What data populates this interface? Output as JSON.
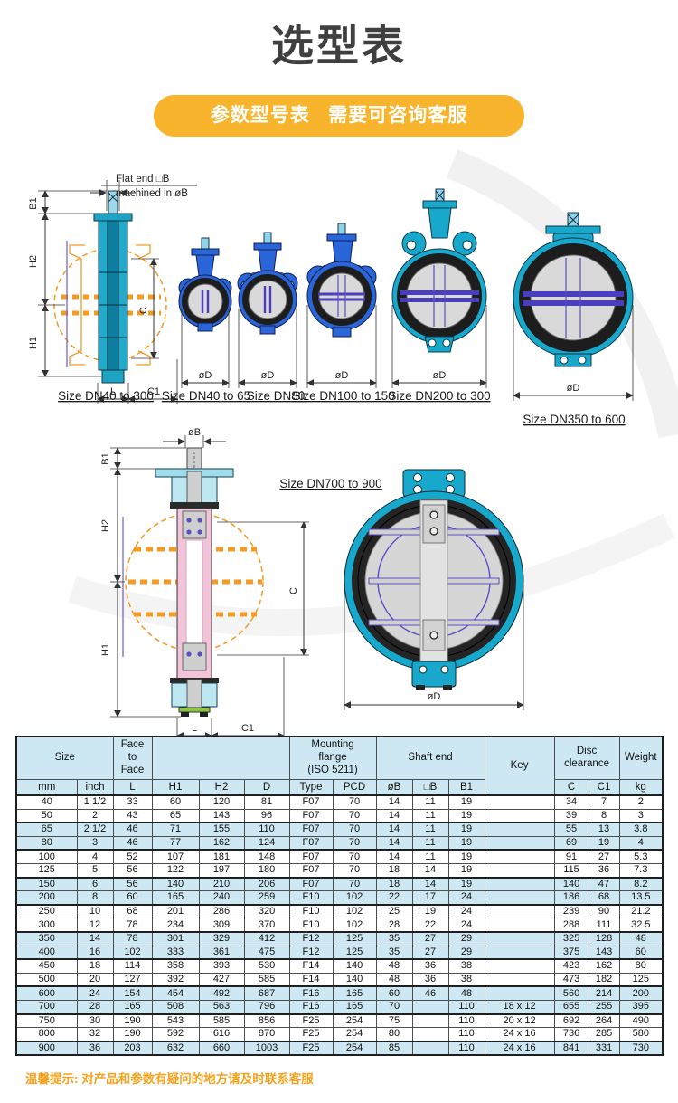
{
  "page": {
    "title": "选型表",
    "banner": "参数型号表   需要可咨询客服",
    "footer_note": "温馨提示: 对产品和参数有疑问的地方请及时联系客服"
  },
  "diagrams": {
    "notes": {
      "flat_end_1": "Flat end □B",
      "flat_end_2": "machined in øB"
    },
    "dims": {
      "b1": "B1",
      "h1": "H1",
      "h2": "H2",
      "c": "C",
      "l": "L",
      "c1": "C1",
      "od": "øD",
      "ob": "øB"
    },
    "captions": [
      "Size DN40 to 300",
      "Size DN40 to 65",
      "Size DN80",
      "Size DN100 to 150",
      "Size DN200 to 300",
      "Size DN350 to 600",
      "Size DN700 to 900"
    ]
  },
  "table": {
    "groups": [
      {
        "label": "Size",
        "colspan": 2
      },
      {
        "label": "Face\nto\nFace",
        "colspan": 1
      },
      {
        "label": "",
        "colspan": 3
      },
      {
        "label": "Mounting\nflange\n(ISO 5211)",
        "colspan": 2
      },
      {
        "label": "Shaft end",
        "colspan": 3
      },
      {
        "label": "Key",
        "colspan": 1,
        "rowspan": 2
      },
      {
        "label": "Disc\nclearance",
        "colspan": 2
      },
      {
        "label": "Weight",
        "colspan": 1
      }
    ],
    "subheaders": [
      "mm",
      "inch",
      "L",
      "H1",
      "H2",
      "D",
      "Type",
      "PCD",
      "øB",
      "□B",
      "B1",
      "C",
      "C1",
      "kg"
    ],
    "rows": [
      [
        "40",
        "1 1/2",
        "33",
        "60",
        "120",
        "81",
        "F07",
        "70",
        "14",
        "11",
        "19",
        "",
        "34",
        "7",
        "2"
      ],
      [
        "50",
        "2",
        "43",
        "65",
        "143",
        "96",
        "F07",
        "70",
        "14",
        "11",
        "19",
        "",
        "39",
        "8",
        "3"
      ],
      [
        "65",
        "2 1/2",
        "46",
        "71",
        "155",
        "110",
        "F07",
        "70",
        "14",
        "11",
        "19",
        "",
        "55",
        "13",
        "3.8"
      ],
      [
        "80",
        "3",
        "46",
        "77",
        "162",
        "124",
        "F07",
        "70",
        "14",
        "11",
        "19",
        "",
        "69",
        "19",
        "4"
      ],
      [
        "100",
        "4",
        "52",
        "107",
        "181",
        "148",
        "F07",
        "70",
        "14",
        "11",
        "19",
        "",
        "91",
        "27",
        "5.3"
      ],
      [
        "125",
        "5",
        "56",
        "122",
        "197",
        "180",
        "F07",
        "70",
        "18",
        "14",
        "19",
        "",
        "115",
        "36",
        "7.3"
      ],
      [
        "150",
        "6",
        "56",
        "140",
        "210",
        "206",
        "F07",
        "70",
        "18",
        "14",
        "19",
        "",
        "140",
        "47",
        "8.2"
      ],
      [
        "200",
        "8",
        "60",
        "165",
        "240",
        "259",
        "F10",
        "102",
        "22",
        "17",
        "24",
        "",
        "186",
        "68",
        "13.5"
      ],
      [
        "250",
        "10",
        "68",
        "201",
        "286",
        "320",
        "F10",
        "102",
        "25",
        "19",
        "24",
        "",
        "239",
        "90",
        "21.2"
      ],
      [
        "300",
        "12",
        "78",
        "234",
        "309",
        "370",
        "F10",
        "102",
        "28",
        "22",
        "24",
        "",
        "288",
        "111",
        "32.5"
      ],
      [
        "350",
        "14",
        "78",
        "301",
        "329",
        "412",
        "F12",
        "125",
        "35",
        "27",
        "29",
        "",
        "325",
        "128",
        "48"
      ],
      [
        "400",
        "16",
        "102",
        "333",
        "361",
        "475",
        "F12",
        "125",
        "35",
        "27",
        "29",
        "",
        "375",
        "143",
        "60"
      ],
      [
        "450",
        "18",
        "114",
        "358",
        "393",
        "530",
        "F14",
        "140",
        "48",
        "36",
        "38",
        "",
        "423",
        "162",
        "80"
      ],
      [
        "500",
        "20",
        "127",
        "392",
        "427",
        "585",
        "F14",
        "140",
        "48",
        "36",
        "38",
        "",
        "473",
        "182",
        "125"
      ],
      [
        "600",
        "24",
        "154",
        "454",
        "492",
        "687",
        "F16",
        "165",
        "60",
        "46",
        "48",
        "",
        "560",
        "214",
        "200"
      ],
      [
        "700",
        "28",
        "165",
        "508",
        "563",
        "796",
        "F16",
        "165",
        "70",
        "",
        "110",
        "18 x 12",
        "655",
        "255",
        "395"
      ],
      [
        "750",
        "30",
        "190",
        "543",
        "585",
        "856",
        "F25",
        "254",
        "75",
        "",
        "110",
        "20 x 12",
        "692",
        "264",
        "490"
      ],
      [
        "800",
        "32",
        "190",
        "592",
        "616",
        "870",
        "F25",
        "254",
        "80",
        "",
        "110",
        "24 x 16",
        "736",
        "285",
        "580"
      ],
      [
        "900",
        "36",
        "203",
        "632",
        "660",
        "1003",
        "F25",
        "254",
        "85",
        "",
        "110",
        "24 x 16",
        "841",
        "331",
        "730"
      ]
    ]
  }
}
